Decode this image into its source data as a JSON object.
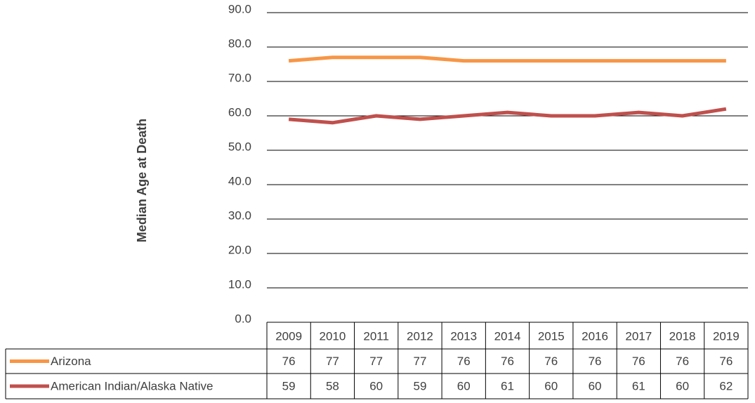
{
  "chart_data": {
    "type": "line",
    "y_label": "Median Age at Death",
    "categories": [
      "2009",
      "2010",
      "2011",
      "2012",
      "2013",
      "2014",
      "2015",
      "2016",
      "2017",
      "2018",
      "2019"
    ],
    "series": [
      {
        "name": "Arizona",
        "color": "#f79646",
        "values": [
          76,
          77,
          77,
          77,
          76,
          76,
          76,
          76,
          76,
          76,
          76
        ]
      },
      {
        "name": "American Indian/Alaska Native",
        "color": "#c0504d",
        "values": [
          59,
          58,
          60,
          59,
          60,
          61,
          60,
          60,
          61,
          60,
          62
        ]
      }
    ],
    "ylim": [
      0,
      90
    ],
    "yticks": [
      {
        "value": 0,
        "label": "0.0"
      },
      {
        "value": 10,
        "label": "10.0"
      },
      {
        "value": 20,
        "label": "20.0"
      },
      {
        "value": 30,
        "label": "30.0"
      },
      {
        "value": 40,
        "label": "40.0"
      },
      {
        "value": 50,
        "label": "50.0"
      },
      {
        "value": 60,
        "label": "60.0"
      },
      {
        "value": 70,
        "label": "70.0"
      },
      {
        "value": 80,
        "label": "80.0"
      },
      {
        "value": 90,
        "label": "90.0"
      }
    ],
    "grid": true
  }
}
